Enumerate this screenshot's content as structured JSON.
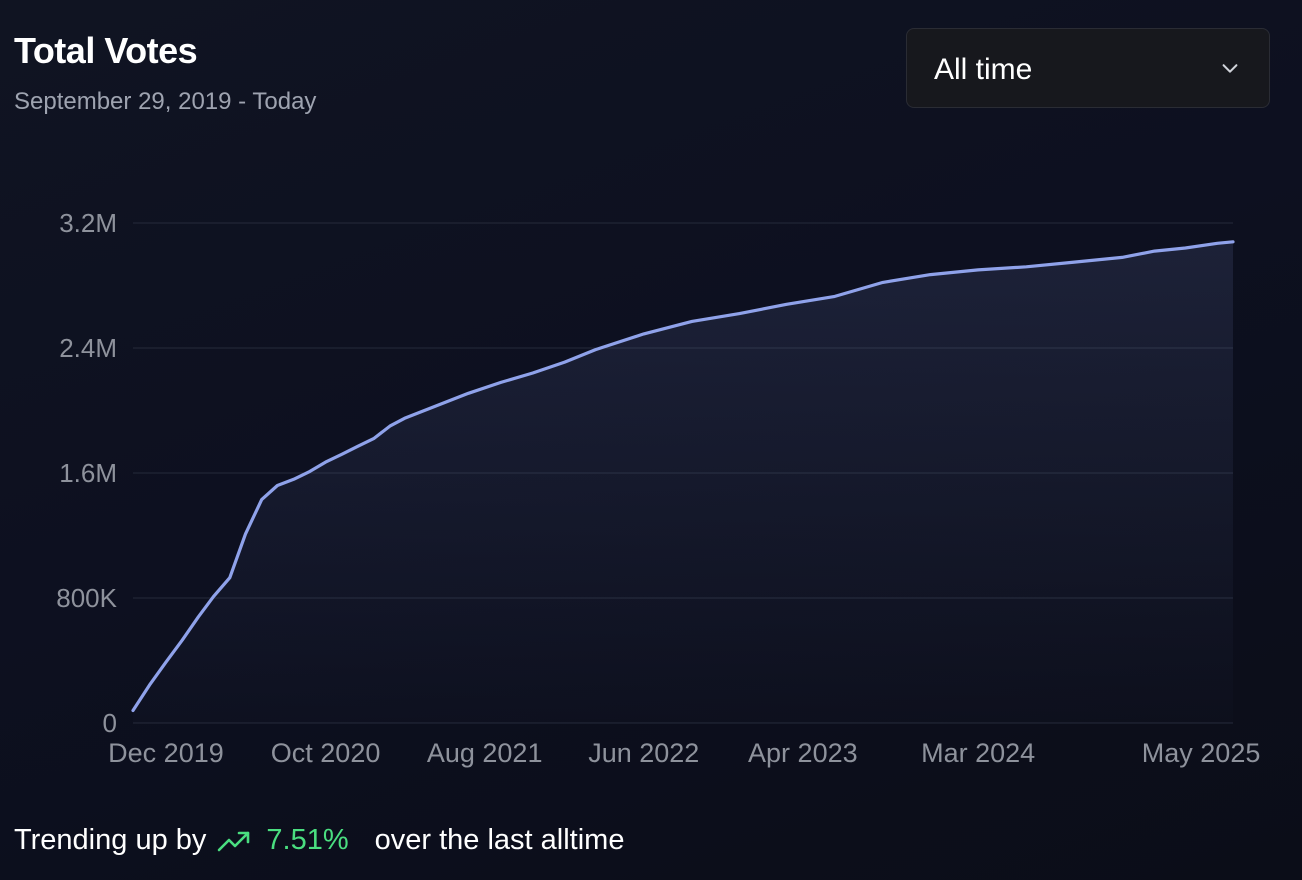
{
  "header": {
    "title": "Total Votes",
    "subtitle": "September 29, 2019 - Today"
  },
  "range_select": {
    "value": "All time",
    "icon": "chevron-down-icon"
  },
  "footer": {
    "prefix": "Trending up by",
    "icon": "trending-up-icon",
    "percent": "7.51%",
    "suffix": "over the last alltime"
  },
  "colors": {
    "line": "#8fa2ea",
    "trend_green": "#4ade80",
    "grid": "#252a3a"
  },
  "chart_data": {
    "type": "area",
    "ylim": [
      0,
      3200000
    ],
    "yticks": [
      {
        "value": 0,
        "label": "0"
      },
      {
        "value": 800000,
        "label": "800K"
      },
      {
        "value": 1600000,
        "label": "1.6M"
      },
      {
        "value": 2400000,
        "label": "2.4M"
      },
      {
        "value": 3200000,
        "label": "3.2M"
      }
    ],
    "xlim": [
      "2019-09-29",
      "2025-07-01"
    ],
    "xticks": [
      {
        "date": "2019-12-01",
        "label": "Dec 2019"
      },
      {
        "date": "2020-10-01",
        "label": "Oct 2020"
      },
      {
        "date": "2021-08-01",
        "label": "Aug 2021"
      },
      {
        "date": "2022-06-01",
        "label": "Jun 2022"
      },
      {
        "date": "2023-04-01",
        "label": "Apr 2023"
      },
      {
        "date": "2024-03-01",
        "label": "Mar 2024"
      },
      {
        "date": "2025-05-01",
        "label": "May 2025"
      }
    ],
    "grid": true,
    "series": [
      {
        "points": [
          [
            "2019-09-29",
            80000
          ],
          [
            "2019-11-01",
            250000
          ],
          [
            "2019-12-01",
            390000
          ],
          [
            "2020-01-01",
            530000
          ],
          [
            "2020-02-01",
            680000
          ],
          [
            "2020-03-01",
            810000
          ],
          [
            "2020-04-01",
            930000
          ],
          [
            "2020-05-01",
            1210000
          ],
          [
            "2020-06-01",
            1430000
          ],
          [
            "2020-07-01",
            1520000
          ],
          [
            "2020-08-01",
            1560000
          ],
          [
            "2020-09-01",
            1610000
          ],
          [
            "2020-10-01",
            1670000
          ],
          [
            "2020-11-01",
            1720000
          ],
          [
            "2020-12-01",
            1770000
          ],
          [
            "2021-01-01",
            1820000
          ],
          [
            "2021-02-01",
            1900000
          ],
          [
            "2021-03-01",
            1950000
          ],
          [
            "2021-05-01",
            2030000
          ],
          [
            "2021-07-01",
            2110000
          ],
          [
            "2021-09-01",
            2180000
          ],
          [
            "2021-11-01",
            2240000
          ],
          [
            "2022-01-01",
            2310000
          ],
          [
            "2022-03-01",
            2390000
          ],
          [
            "2022-06-01",
            2490000
          ],
          [
            "2022-09-01",
            2570000
          ],
          [
            "2022-12-01",
            2620000
          ],
          [
            "2023-03-01",
            2680000
          ],
          [
            "2023-06-01",
            2730000
          ],
          [
            "2023-09-01",
            2820000
          ],
          [
            "2023-12-01",
            2870000
          ],
          [
            "2024-03-01",
            2900000
          ],
          [
            "2024-06-01",
            2920000
          ],
          [
            "2024-09-01",
            2950000
          ],
          [
            "2024-12-01",
            2980000
          ],
          [
            "2025-02-01",
            3020000
          ],
          [
            "2025-04-01",
            3040000
          ],
          [
            "2025-06-01",
            3070000
          ],
          [
            "2025-07-01",
            3080000
          ]
        ]
      }
    ]
  }
}
